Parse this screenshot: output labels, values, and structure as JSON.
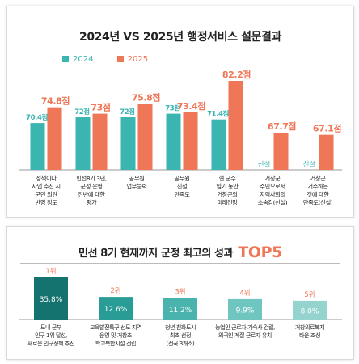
{
  "chart_data": [
    {
      "type": "bar",
      "title": "2024년 VS 2025년 행정서비스 설문결과",
      "categories": [
        [
          "정책이나",
          "사업 추진 시",
          "군민 의견",
          "반영 정도"
        ],
        [
          "민선8기 3년,",
          "군정 운영",
          "전반에 대한",
          "평가"
        ],
        [
          "공무원",
          "업무능력"
        ],
        [
          "공무원",
          "친절",
          "만족도"
        ],
        [
          "현 군수",
          "임기 동안",
          "거창군의",
          "미래전망"
        ],
        [
          "거창군",
          "주민으로서",
          "지역사회의",
          "소속감(신설)"
        ],
        [
          "거창군",
          "거주하는",
          "것에 대한",
          "만족도(신설)"
        ]
      ],
      "series": [
        {
          "name": "2024",
          "color": "#3ab5b0",
          "values": [
            70.4,
            72,
            72,
            73,
            71.4,
            null,
            null
          ],
          "labels": [
            "70.4점",
            "72점",
            "72점",
            "73점",
            "71.4점",
            "신설",
            "신설"
          ]
        },
        {
          "name": "2025",
          "color": "#ef7656",
          "values": [
            74.8,
            73,
            75.8,
            73.4,
            82.2,
            67.7,
            67.1
          ],
          "labels": [
            "74.8점",
            "73점",
            "75.8점",
            "73.4점",
            "82.2점",
            "67.7점",
            "67.1점"
          ]
        }
      ]
    },
    {
      "type": "bar",
      "title": "민선 8기 현재까지 군정 최고의 성과",
      "title_highlight": "TOP5",
      "categories": [
        [
          "도내 군부",
          "인구 1위 달성,",
          "새로운 인구정책 추진"
        ],
        [
          "교육발전특구 선도 지역",
          "운영 및 거창초",
          "학교복합시설 건립"
        ],
        [
          "청년 친화도시",
          "최초 선정",
          "(전국 3개소)"
        ],
        [
          "농업인 근로자 기숙사 건립,",
          "외국인 계절 근로자 유치"
        ],
        [
          "거창의료복지",
          "타운 조성"
        ]
      ],
      "ranks": [
        "1위",
        "2위",
        "3위",
        "4위",
        "5위"
      ],
      "values": [
        35.8,
        12.6,
        11.2,
        9.9,
        8.0
      ],
      "labels": [
        "35.8%",
        "12.6%",
        "11.2%",
        "9.9%",
        "8.0%"
      ],
      "colors": [
        "#14726f",
        "#2a9c96",
        "#4ab3ad",
        "#6fc5c0",
        "#95d3cf"
      ]
    }
  ]
}
